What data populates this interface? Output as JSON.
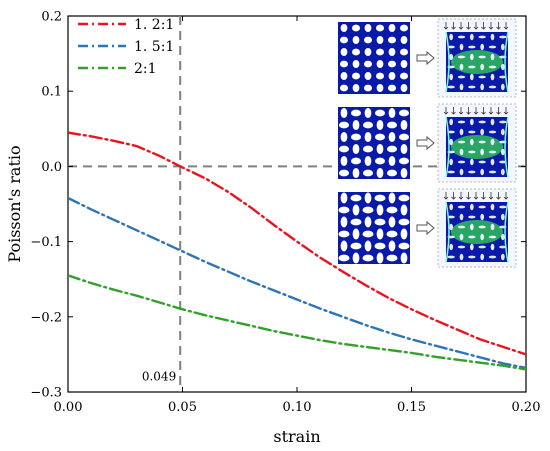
{
  "chart_data": {
    "type": "line",
    "title": "",
    "xlabel": "strain",
    "ylabel": "Poisson's ratio",
    "xlim": [
      0.0,
      0.2
    ],
    "ylim": [
      -0.3,
      0.2
    ],
    "x_ticks": [
      0.0,
      0.05,
      0.1,
      0.15,
      0.2
    ],
    "x_tick_labels": [
      "0.00",
      "0.05",
      "0.10",
      "0.15",
      "0.20"
    ],
    "y_ticks": [
      0.2,
      0.1,
      0.0,
      -0.1,
      -0.2,
      -0.3
    ],
    "y_tick_labels": [
      "0.2",
      "0.1",
      "0.0",
      "−0.1",
      "−0.2",
      "−0.3"
    ],
    "grid": false,
    "legend_position": "top-left",
    "reference_lines": [
      {
        "orientation": "horizontal",
        "value": 0.0,
        "style": "dashed",
        "color": "#808080"
      },
      {
        "orientation": "vertical",
        "value": 0.049,
        "style": "dashed",
        "color": "#808080",
        "label": "0.049"
      }
    ],
    "series": [
      {
        "name": "1. 2:1",
        "color": "#e8141e",
        "style": "dash-dot",
        "x": [
          0.0,
          0.01,
          0.02,
          0.03,
          0.04,
          0.049,
          0.06,
          0.07,
          0.08,
          0.09,
          0.1,
          0.11,
          0.12,
          0.13,
          0.14,
          0.15,
          0.16,
          0.17,
          0.18,
          0.19,
          0.2
        ],
        "y": [
          0.045,
          0.04,
          0.034,
          0.027,
          0.014,
          0.0,
          -0.016,
          -0.034,
          -0.055,
          -0.078,
          -0.1,
          -0.121,
          -0.14,
          -0.158,
          -0.175,
          -0.19,
          -0.204,
          -0.217,
          -0.23,
          -0.24,
          -0.25
        ]
      },
      {
        "name": "1. 5:1",
        "color": "#2e75b6",
        "style": "dash-dot",
        "x": [
          0.0,
          0.01,
          0.02,
          0.03,
          0.04,
          0.05,
          0.06,
          0.07,
          0.08,
          0.09,
          0.1,
          0.11,
          0.12,
          0.13,
          0.14,
          0.15,
          0.16,
          0.17,
          0.18,
          0.19,
          0.2
        ],
        "y": [
          -0.042,
          -0.057,
          -0.071,
          -0.085,
          -0.099,
          -0.113,
          -0.127,
          -0.14,
          -0.153,
          -0.165,
          -0.177,
          -0.189,
          -0.2,
          -0.211,
          -0.221,
          -0.23,
          -0.238,
          -0.246,
          -0.254,
          -0.262,
          -0.268
        ]
      },
      {
        "name": "2:1",
        "color": "#33a02c",
        "style": "dash-dot",
        "x": [
          0.0,
          0.01,
          0.02,
          0.03,
          0.04,
          0.05,
          0.06,
          0.07,
          0.08,
          0.09,
          0.1,
          0.11,
          0.12,
          0.13,
          0.14,
          0.15,
          0.16,
          0.17,
          0.18,
          0.19,
          0.2
        ],
        "y": [
          -0.145,
          -0.155,
          -0.164,
          -0.172,
          -0.181,
          -0.19,
          -0.198,
          -0.205,
          -0.212,
          -0.219,
          -0.225,
          -0.231,
          -0.236,
          -0.24,
          -0.244,
          -0.248,
          -0.253,
          -0.257,
          -0.261,
          -0.265,
          -0.27
        ]
      }
    ],
    "annotations": [
      {
        "text": "0.049",
        "x": 0.049,
        "y": -0.285
      }
    ],
    "inset_images": [
      {
        "before": "unit-cell-1-2",
        "after": "deformed-1-2"
      },
      {
        "before": "unit-cell-1-5",
        "after": "deformed-1-5"
      },
      {
        "before": "unit-cell-2-1",
        "after": "deformed-2-1"
      }
    ]
  }
}
